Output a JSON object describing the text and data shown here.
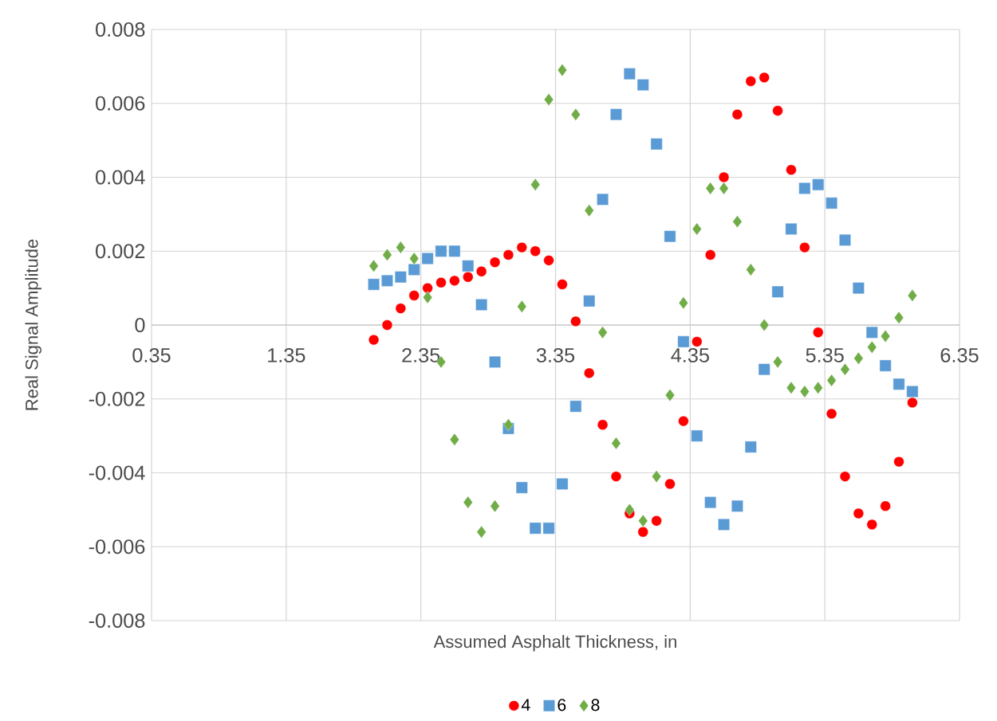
{
  "chart_data": {
    "type": "scatter",
    "xlabel": "Assumed Asphalt Thickness, in",
    "ylabel": "Real Signal Amplitude",
    "x": [
      2.0,
      2.1,
      2.2,
      2.3,
      2.4,
      2.5,
      2.6,
      2.7,
      2.8,
      2.9,
      3.0,
      3.1,
      3.2,
      3.3,
      3.4,
      3.5,
      3.6,
      3.7,
      3.8,
      3.9,
      4.0,
      4.1,
      4.2,
      4.3,
      4.4,
      4.5,
      4.6,
      4.7,
      4.8,
      4.9,
      5.0,
      5.1,
      5.2,
      5.3,
      5.4,
      5.5,
      5.6,
      5.7,
      5.8,
      5.9,
      6.0
    ],
    "series": [
      {
        "name": "4",
        "color": "#ff0000",
        "marker": "circle",
        "values": [
          -0.0004,
          0.0,
          0.00045,
          0.0008,
          0.001,
          0.00115,
          0.0012,
          0.0013,
          0.00145,
          0.0017,
          0.0019,
          0.0021,
          0.002,
          0.00175,
          0.0011,
          0.0001,
          -0.0013,
          -0.0027,
          -0.0041,
          -0.0051,
          -0.0056,
          -0.0053,
          -0.0043,
          -0.0026,
          -0.00045,
          0.0019,
          0.004,
          0.0057,
          0.0066,
          0.0067,
          0.0058,
          0.0042,
          0.0021,
          -0.0002,
          -0.0024,
          -0.0041,
          -0.0051,
          -0.0054,
          -0.0049,
          -0.0037,
          -0.0021
        ]
      },
      {
        "name": "6",
        "color": "#5b9bd5",
        "marker": "square",
        "values": [
          0.0011,
          0.0012,
          0.0013,
          0.0015,
          0.0018,
          0.002,
          0.002,
          0.0016,
          0.00055,
          -0.001,
          -0.0028,
          -0.0044,
          -0.0055,
          -0.0055,
          -0.0043,
          -0.0022,
          0.00065,
          0.0034,
          0.0057,
          0.0068,
          0.0065,
          0.0049,
          0.0024,
          -0.00045,
          -0.003,
          -0.0048,
          -0.0054,
          -0.0049,
          -0.0033,
          -0.0012,
          0.0009,
          0.0026,
          0.0037,
          0.0038,
          0.0033,
          0.0023,
          0.001,
          -0.0002,
          -0.0011,
          -0.0016,
          -0.0018
        ]
      },
      {
        "name": "8",
        "color": "#70ad47",
        "marker": "diamond",
        "values": [
          0.0016,
          0.0019,
          0.0021,
          0.0018,
          0.00075,
          -0.001,
          -0.0031,
          -0.0048,
          -0.0056,
          -0.0049,
          -0.0027,
          0.0005,
          0.0038,
          0.0061,
          0.0069,
          0.0057,
          0.0031,
          -0.0002,
          -0.0032,
          -0.005,
          -0.0053,
          -0.0041,
          -0.0019,
          0.0006,
          0.0026,
          0.0037,
          0.0037,
          0.0028,
          0.0015,
          0.0,
          -0.001,
          -0.0017,
          -0.0018,
          -0.0017,
          -0.0015,
          -0.0012,
          -0.0009,
          -0.0006,
          -0.0003,
          0.0002,
          0.0008
        ]
      }
    ],
    "xlim": [
      0.35,
      6.35
    ],
    "xticks": [
      0.35,
      1.35,
      2.35,
      3.35,
      4.35,
      5.35,
      6.35
    ],
    "ylim": [
      -0.008,
      0.008
    ],
    "yticks": [
      -0.008,
      -0.006,
      -0.004,
      -0.002,
      0,
      0.002,
      0.004,
      0.006,
      0.008
    ],
    "grid": true,
    "legend": "bottom"
  }
}
